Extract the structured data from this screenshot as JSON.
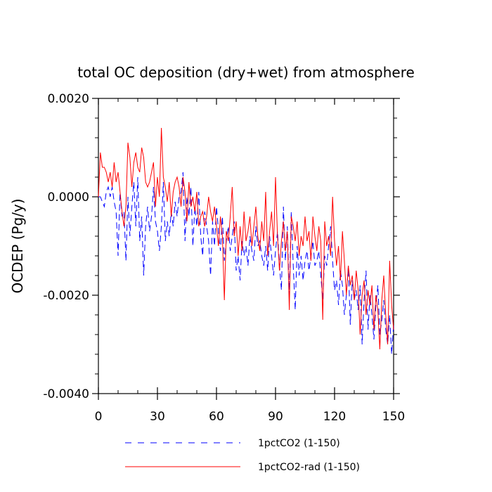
{
  "chart_data": {
    "type": "line",
    "title": "total OC deposition (dry+wet) from atmosphere",
    "xlabel": "",
    "ylabel": "OCDEP  (Pg/y)",
    "xlim": [
      0,
      150
    ],
    "ylim": [
      -0.004,
      0.002
    ],
    "x_ticks": [
      0,
      30,
      60,
      90,
      120,
      150
    ],
    "x_tick_labels": [
      "0",
      "30",
      "60",
      "90",
      "120",
      "150"
    ],
    "y_ticks": [
      0.002,
      0.0,
      -0.002,
      -0.004
    ],
    "y_tick_labels": [
      "0.0020",
      "0.0000",
      "-0.0020",
      "-0.0040"
    ],
    "grid": false,
    "legend_position": "bottom",
    "x": [
      0,
      1,
      2,
      3,
      4,
      5,
      6,
      7,
      8,
      9,
      10,
      11,
      12,
      13,
      14,
      15,
      16,
      17,
      18,
      19,
      20,
      21,
      22,
      23,
      24,
      25,
      26,
      27,
      28,
      29,
      30,
      31,
      32,
      33,
      34,
      35,
      36,
      37,
      38,
      39,
      40,
      41,
      42,
      43,
      44,
      45,
      46,
      47,
      48,
      49,
      50,
      51,
      52,
      53,
      54,
      55,
      56,
      57,
      58,
      59,
      60,
      61,
      62,
      63,
      64,
      65,
      66,
      67,
      68,
      69,
      70,
      71,
      72,
      73,
      74,
      75,
      76,
      77,
      78,
      79,
      80,
      81,
      82,
      83,
      84,
      85,
      86,
      87,
      88,
      89,
      90,
      91,
      92,
      93,
      94,
      95,
      96,
      97,
      98,
      99,
      100,
      101,
      102,
      103,
      104,
      105,
      106,
      107,
      108,
      109,
      110,
      111,
      112,
      113,
      114,
      115,
      116,
      117,
      118,
      119,
      120,
      121,
      122,
      123,
      124,
      125,
      126,
      127,
      128,
      129,
      130,
      131,
      132,
      133,
      134,
      135,
      136,
      137,
      138,
      139,
      140,
      141,
      142,
      143,
      144,
      145,
      146,
      147,
      148,
      149,
      150
    ],
    "series": [
      {
        "name": "1pctCO2 (1-150)",
        "color": "#0000ff",
        "dash": "dashed",
        "values": [
          0.0,
          0.0,
          -0.0001,
          -0.0002,
          0.0001,
          0.0002,
          0.0,
          0.0002,
          -0.0001,
          -0.0003,
          -0.0012,
          0.0001,
          -0.0004,
          -0.0003,
          -0.0013,
          0.0,
          -0.0008,
          -0.0002,
          0.0003,
          -0.0006,
          0.0004,
          -0.0009,
          -0.0004,
          -0.0016,
          -0.0006,
          -0.0002,
          -0.0007,
          -0.0004,
          0.0002,
          -0.0005,
          -0.0007,
          -0.0011,
          -0.0006,
          0.0003,
          -0.0009,
          -0.0005,
          -0.0008,
          -0.0003,
          -0.0006,
          -0.0001,
          -0.0004,
          0.0,
          0.0001,
          0.0005,
          -0.0009,
          0.0,
          -0.0004,
          0.0002,
          -0.001,
          -0.0002,
          -0.0006,
          0.0001,
          -0.0008,
          -0.0012,
          -0.0003,
          -0.0006,
          -0.0009,
          -0.0016,
          -0.0005,
          -0.001,
          -0.0002,
          -0.0007,
          -0.0011,
          -0.0004,
          -0.0013,
          -0.0009,
          -0.0006,
          -0.0011,
          -0.0008,
          -0.0005,
          -0.0015,
          -0.0012,
          -0.0017,
          -0.0009,
          -0.0012,
          -0.001,
          -0.0014,
          -0.0008,
          -0.0011,
          -0.0013,
          -0.0006,
          -0.001,
          -0.0009,
          -0.0012,
          -0.0014,
          -0.001,
          -0.0015,
          -0.0008,
          -0.0012,
          -0.0016,
          -0.0011,
          -0.0007,
          -0.0014,
          -0.0019,
          -0.0002,
          -0.0013,
          -0.0006,
          -0.002,
          -0.0003,
          -0.0014,
          -0.0023,
          -0.001,
          -0.0016,
          -0.0012,
          -0.0017,
          -0.0013,
          -0.0011,
          -0.0015,
          -0.0012,
          -0.0009,
          -0.0014,
          -0.0013,
          -0.0011,
          -0.0016,
          -0.0021,
          -0.0012,
          -0.0014,
          -0.001,
          -0.0006,
          -0.0013,
          -0.0019,
          -0.0017,
          -0.0022,
          -0.0015,
          -0.0018,
          -0.0024,
          -0.002,
          -0.0014,
          -0.0026,
          -0.0017,
          -0.0021,
          -0.0019,
          -0.0023,
          -0.0018,
          -0.003,
          -0.0021,
          -0.0015,
          -0.0027,
          -0.002,
          -0.0024,
          -0.0029,
          -0.0022,
          -0.0018,
          -0.0028,
          -0.0025,
          -0.0021,
          -0.0027,
          -0.003,
          -0.0024,
          -0.0032,
          -0.0026
        ]
      },
      {
        "name": "1pctCO2-rad (1-150)",
        "color": "#ff0000",
        "dash": "solid",
        "values": [
          0.0,
          0.0009,
          0.0006,
          0.0006,
          0.0005,
          0.0003,
          0.0005,
          0.0002,
          0.0007,
          0.0003,
          0.0005,
          0.0001,
          -0.0003,
          -0.0006,
          -0.0002,
          0.0011,
          0.0008,
          0.0002,
          0.0007,
          0.0009,
          0.0006,
          0.0005,
          0.001,
          0.0008,
          0.0003,
          0.0002,
          0.0003,
          0.0005,
          0.0007,
          -0.0002,
          0.0004,
          0.0,
          0.0014,
          0.0004,
          0.0002,
          -0.0001,
          0.0003,
          -0.0004,
          0.0001,
          0.0003,
          0.0004,
          0.0002,
          -0.0002,
          0.0004,
          0.0001,
          -0.0005,
          0.0003,
          -0.0002,
          0.0,
          -0.0003,
          0.0001,
          -0.0006,
          -0.0004,
          -0.0003,
          -0.0006,
          -0.0004,
          0.0,
          -0.0003,
          -0.0005,
          -0.0002,
          -0.0006,
          -0.001,
          -0.0004,
          -0.0008,
          -0.0021,
          -0.0007,
          -0.0009,
          -0.0004,
          0.0002,
          -0.0008,
          -0.0005,
          -0.0012,
          -0.0006,
          -0.0011,
          -0.0003,
          -0.0009,
          -0.0007,
          -0.0004,
          -0.001,
          -0.0006,
          -0.0002,
          -0.0008,
          -0.0011,
          -0.0005,
          -0.0009,
          0.0001,
          -0.0012,
          -0.0007,
          -0.0003,
          -0.001,
          0.0004,
          -0.0008,
          -0.0015,
          -0.0009,
          -0.0005,
          -0.0011,
          -0.0007,
          -0.0023,
          -0.0004,
          -0.0006,
          -0.0009,
          -0.0005,
          -0.0012,
          -0.0008,
          -0.001,
          -0.0004,
          -0.0009,
          -0.0007,
          -0.0013,
          -0.0004,
          -0.0008,
          -0.0011,
          -0.0006,
          -0.0009,
          -0.0025,
          -0.0005,
          -0.001,
          -0.0008,
          -0.0012,
          0.0,
          -0.0009,
          -0.0014,
          -0.001,
          -0.0017,
          -0.0007,
          -0.0013,
          -0.002,
          -0.0014,
          -0.0018,
          -0.0016,
          -0.0021,
          -0.0015,
          -0.0019,
          -0.0028,
          -0.002,
          -0.0017,
          -0.0024,
          -0.0019,
          -0.0022,
          -0.0018,
          -0.0027,
          -0.002,
          -0.0023,
          -0.0031,
          -0.0021,
          -0.0016,
          -0.0024,
          -0.003,
          -0.0013,
          -0.0022,
          -0.0027
        ]
      }
    ]
  }
}
